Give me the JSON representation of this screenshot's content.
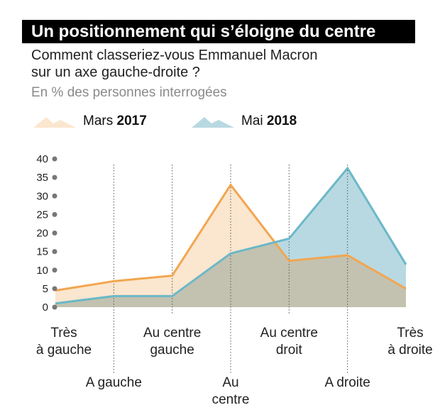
{
  "header": {
    "title": "Un positionnement qui s’éloigne du centre",
    "subtitle_line1": "Comment classeriez-vous Emmanuel Macron",
    "subtitle_line2": "sur un axe gauche-droite ?",
    "unit": "En % des personnes interrogées"
  },
  "legend": [
    {
      "month": "Mars",
      "year": "2017",
      "color": "#f2a650",
      "fill": "#fbe6cf"
    },
    {
      "month": "Mai",
      "year": "2018",
      "color": "#6bb8c8",
      "fill": "#b8d9e2"
    }
  ],
  "chart_data": {
    "type": "area",
    "title": "Un positionnement qui s’éloigne du centre",
    "categories": [
      [
        "Très",
        "à gauche"
      ],
      [
        "A gauche"
      ],
      [
        "Au centre",
        "gauche"
      ],
      [
        "Au",
        "centre"
      ],
      [
        "Au centre",
        "droit"
      ],
      [
        "A droite"
      ],
      [
        "Très",
        "à droite"
      ]
    ],
    "series": [
      {
        "name": "Mars 2017",
        "values": [
          4.5,
          7,
          8.5,
          33,
          12.5,
          14,
          5
        ]
      },
      {
        "name": "Mai 2018",
        "values": [
          1,
          3,
          3,
          14.5,
          18.5,
          37.5,
          11.5
        ]
      }
    ],
    "ylim": [
      0,
      40
    ],
    "yticks": [
      0,
      5,
      10,
      15,
      20,
      25,
      30,
      35,
      40
    ],
    "overlap_color": "#c3c2b0"
  }
}
